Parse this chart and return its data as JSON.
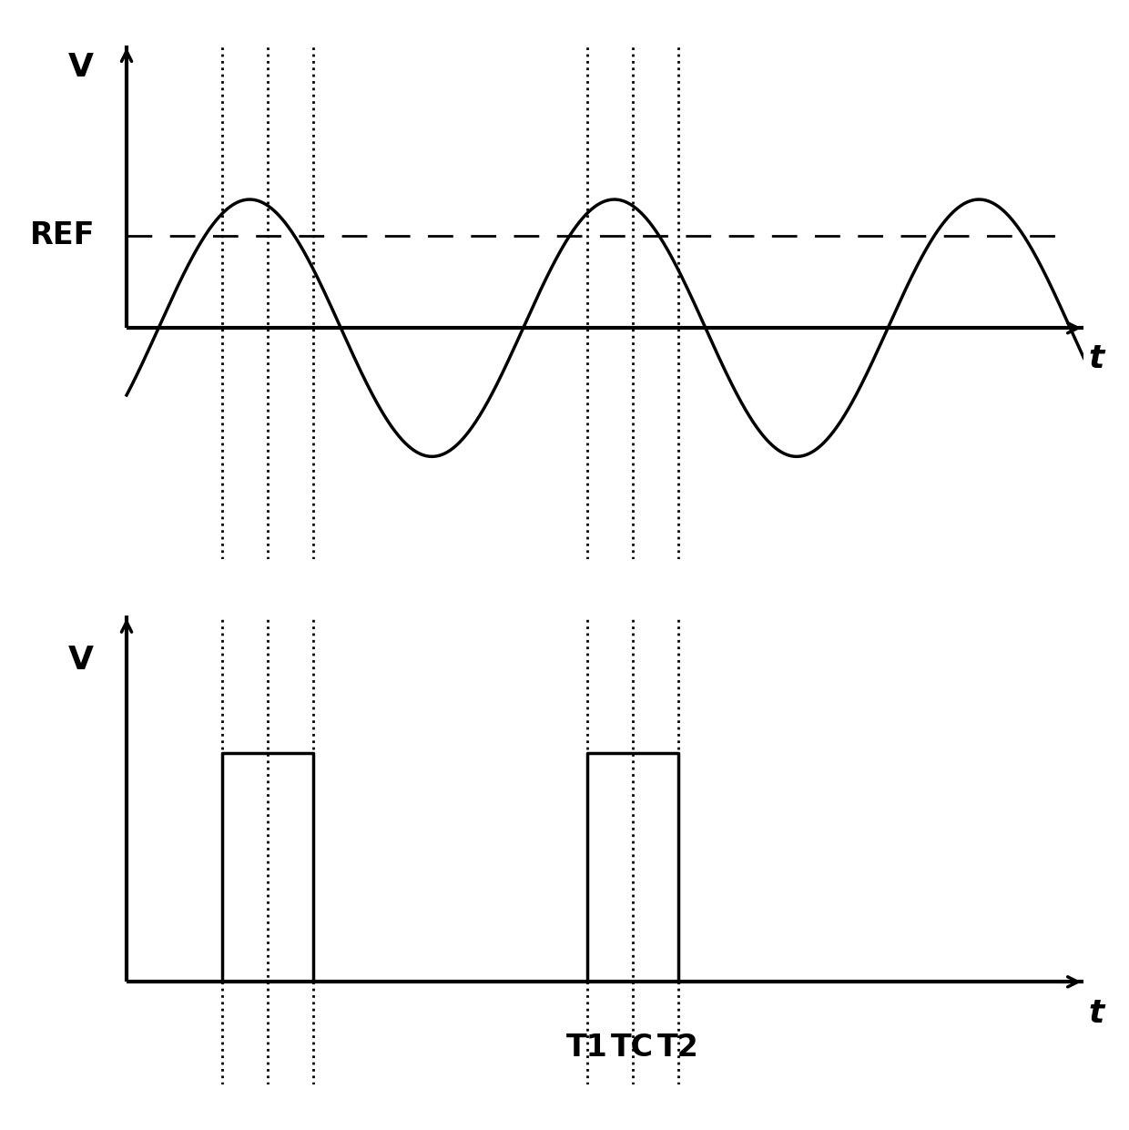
{
  "fig_width": 12.4,
  "fig_height": 12.41,
  "bg_color": "#ffffff",
  "line_color": "#000000",
  "top_plot": {
    "ylabel": "V",
    "xlabel": "t",
    "ref_label": "REF",
    "xmin": -0.15,
    "xmax": 10.5,
    "ymin": -1.8,
    "ymax": 2.2,
    "ref_y": 0.72,
    "sine_amplitude": 1.0,
    "sine_period": 4.0,
    "sine_phase": -0.55,
    "axis_y": 0.0
  },
  "bottom_plot": {
    "ylabel": "V",
    "xlabel": "t",
    "xmin": -0.15,
    "xmax": 10.5,
    "ymin": -0.45,
    "ymax": 1.6,
    "pulse1_start": 1.05,
    "pulse1_end": 2.05,
    "pulse2_start": 5.05,
    "pulse2_end": 6.05,
    "pulse_height": 1.0
  },
  "dotted_lines_x": [
    1.05,
    1.55,
    2.05,
    5.05,
    5.55,
    6.05
  ],
  "T1_x": 5.05,
  "TC_x": 5.55,
  "T2_x": 6.05,
  "T1_label": "T1",
  "TC_label": "TC",
  "T2_label": "T2"
}
